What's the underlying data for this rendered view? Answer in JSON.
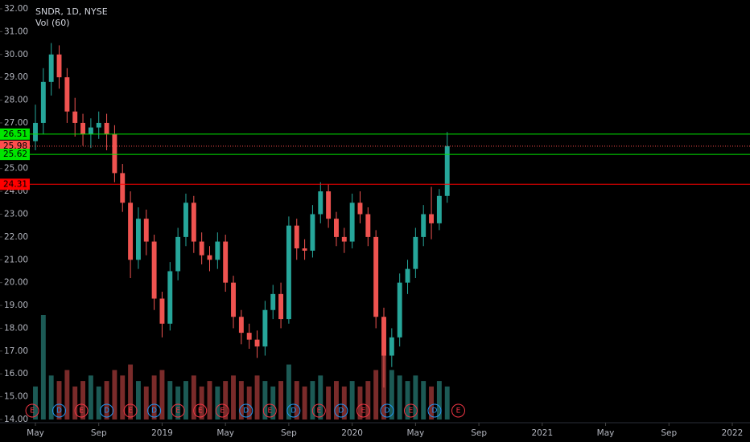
{
  "header": {
    "title": "SNDR, 1D, NYSE",
    "indicator": "Vol (60)"
  },
  "chart_data": {
    "type": "candlestick",
    "x": [
      0,
      0.5,
      1,
      1.5,
      2,
      2.5,
      3,
      3.5,
      4,
      4.5,
      5,
      5.5,
      6,
      6.5,
      7,
      7.5,
      8,
      8.5,
      9,
      9.5,
      10,
      10.5,
      11,
      11.5,
      12,
      12.5,
      13,
      13.5,
      14,
      14.5,
      15,
      15.5,
      16,
      16.5,
      17,
      17.5,
      18,
      18.5,
      19,
      19.5,
      20,
      20.5,
      21,
      21.5,
      22,
      22.5,
      23,
      23.5,
      24,
      24.5,
      25,
      25.5,
      26
    ],
    "open": [
      26.2,
      27.0,
      28.8,
      30.0,
      29.0,
      27.5,
      27.0,
      26.5,
      26.8,
      27.0,
      26.5,
      24.8,
      23.5,
      21.0,
      22.8,
      21.8,
      19.3,
      18.2,
      20.5,
      22.0,
      23.5,
      21.8,
      21.2,
      21.0,
      21.8,
      20.0,
      18.5,
      17.8,
      17.5,
      17.2,
      18.8,
      19.5,
      18.4,
      22.5,
      21.5,
      21.4,
      23.0,
      24.0,
      22.8,
      22.0,
      21.8,
      23.5,
      23.0,
      22.0,
      18.5,
      16.8,
      17.6,
      20.0,
      20.6,
      22.0,
      23.0,
      22.6,
      23.8
    ],
    "high": [
      27.8,
      29.4,
      30.5,
      30.4,
      29.4,
      28.1,
      27.4,
      27.2,
      27.5,
      27.4,
      26.9,
      25.2,
      24.0,
      23.3,
      23.2,
      22.1,
      19.6,
      20.9,
      22.4,
      23.9,
      23.8,
      22.2,
      21.6,
      22.2,
      22.1,
      20.3,
      18.8,
      18.2,
      17.9,
      19.2,
      19.9,
      20.0,
      22.9,
      22.8,
      21.9,
      23.4,
      24.4,
      24.3,
      23.1,
      22.4,
      23.9,
      24.0,
      23.3,
      22.3,
      18.9,
      18.0,
      20.4,
      21.0,
      22.4,
      23.4,
      24.2,
      24.1,
      26.6
    ],
    "low": [
      25.8,
      26.5,
      28.2,
      28.5,
      27.0,
      26.4,
      26.0,
      25.9,
      26.3,
      25.8,
      24.4,
      23.1,
      20.2,
      20.6,
      21.2,
      18.8,
      17.6,
      17.9,
      20.1,
      21.6,
      21.3,
      20.8,
      20.5,
      20.6,
      19.6,
      18.0,
      17.3,
      17.1,
      16.7,
      16.8,
      18.4,
      18.0,
      18.2,
      21.0,
      21.0,
      21.1,
      22.6,
      22.4,
      21.6,
      21.3,
      21.5,
      22.6,
      21.6,
      18.0,
      15.4,
      16.3,
      17.2,
      19.5,
      20.2,
      21.6,
      21.9,
      22.3,
      23.5
    ],
    "close": [
      27.0,
      28.8,
      30.0,
      29.0,
      27.5,
      27.0,
      26.5,
      26.8,
      27.0,
      26.5,
      24.8,
      23.5,
      21.0,
      22.8,
      21.8,
      19.3,
      18.2,
      20.5,
      22.0,
      23.5,
      21.8,
      21.2,
      21.0,
      21.8,
      20.0,
      18.5,
      17.8,
      17.5,
      17.2,
      18.8,
      19.5,
      18.4,
      22.5,
      21.5,
      21.4,
      23.0,
      24.0,
      22.8,
      22.0,
      21.8,
      23.5,
      23.0,
      22.0,
      18.5,
      16.8,
      17.6,
      20.0,
      20.6,
      22.0,
      23.0,
      22.6,
      23.8,
      25.98
    ],
    "volume": [
      0.6,
      1.9,
      0.8,
      0.7,
      0.9,
      0.6,
      0.7,
      0.8,
      0.6,
      0.7,
      0.9,
      0.8,
      1.0,
      0.7,
      0.6,
      0.8,
      0.9,
      0.7,
      0.6,
      0.7,
      0.8,
      0.6,
      0.7,
      0.6,
      0.7,
      0.8,
      0.7,
      0.6,
      0.8,
      0.7,
      0.6,
      0.7,
      1.0,
      0.7,
      0.6,
      0.7,
      0.8,
      0.6,
      0.7,
      0.6,
      0.7,
      0.6,
      0.7,
      0.9,
      1.2,
      0.9,
      0.8,
      0.7,
      0.8,
      0.7,
      0.6,
      0.7,
      0.6
    ],
    "up_color": "#26a69a",
    "down_color": "#ef5350",
    "volume_up_color": "#1c5a55",
    "volume_down_color": "#7a2b2a",
    "ylim": [
      14,
      32
    ],
    "yticks": [
      {
        "value": 14,
        "label": "14.00"
      },
      {
        "value": 15,
        "label": "15.00"
      },
      {
        "value": 16,
        "label": "16.00"
      },
      {
        "value": 17,
        "label": "17.00"
      },
      {
        "value": 18,
        "label": "18.00"
      },
      {
        "value": 19,
        "label": "19.00"
      },
      {
        "value": 20,
        "label": "20.00"
      },
      {
        "value": 21,
        "label": "21.00"
      },
      {
        "value": 22,
        "label": "22.00"
      },
      {
        "value": 23,
        "label": "23.00"
      },
      {
        "value": 24,
        "label": "24.00"
      },
      {
        "value": 25,
        "label": "25.00"
      },
      {
        "value": 26,
        "label": "26.00"
      },
      {
        "value": 27,
        "label": "27.00"
      },
      {
        "value": 28,
        "label": "28.00"
      },
      {
        "value": 29,
        "label": "29.00"
      },
      {
        "value": 30,
        "label": "30.00"
      },
      {
        "value": 31,
        "label": "31.00"
      },
      {
        "value": 32,
        "label": "32.00"
      }
    ],
    "xlim": [
      -0.3,
      44.1
    ],
    "xticks": [
      {
        "value": 0,
        "label": "May"
      },
      {
        "value": 4,
        "label": "Sep"
      },
      {
        "value": 8,
        "label": "2019"
      },
      {
        "value": 12,
        "label": "May"
      },
      {
        "value": 16,
        "label": "Sep"
      },
      {
        "value": 20,
        "label": "2020"
      },
      {
        "value": 24,
        "label": "May"
      },
      {
        "value": 28,
        "label": "Sep"
      },
      {
        "value": 32,
        "label": "2021"
      },
      {
        "value": 36,
        "label": "May"
      },
      {
        "value": 40,
        "label": "Sep"
      },
      {
        "value": 44,
        "label": "2022"
      }
    ],
    "price_lines": [
      {
        "value": 26.51,
        "color": "#00e600",
        "style": "solid"
      },
      {
        "value": 25.98,
        "color": "#ff4d4d",
        "style": "dotted"
      },
      {
        "value": 25.62,
        "color": "#00e600",
        "style": "solid"
      },
      {
        "value": 24.31,
        "color": "#ff0000",
        "style": "solid"
      }
    ],
    "events": [
      {
        "letter": "E",
        "x": -0.2,
        "color": "#f23645"
      },
      {
        "letter": "D",
        "x": 1.5,
        "color": "#2196f3"
      },
      {
        "letter": "E",
        "x": 2.9,
        "color": "#f23645"
      },
      {
        "letter": "D",
        "x": 4.5,
        "color": "#2196f3"
      },
      {
        "letter": "E",
        "x": 6.0,
        "color": "#f23645"
      },
      {
        "letter": "D",
        "x": 7.5,
        "color": "#2196f3"
      },
      {
        "letter": "E",
        "x": 9.0,
        "color": "#f23645"
      },
      {
        "letter": "E",
        "x": 10.4,
        "color": "#f23645"
      },
      {
        "letter": "E",
        "x": 11.8,
        "color": "#f23645"
      },
      {
        "letter": "D",
        "x": 13.3,
        "color": "#2196f3"
      },
      {
        "letter": "E",
        "x": 14.8,
        "color": "#f23645"
      },
      {
        "letter": "D",
        "x": 16.3,
        "color": "#2196f3"
      },
      {
        "letter": "E",
        "x": 17.9,
        "color": "#f23645"
      },
      {
        "letter": "D",
        "x": 19.3,
        "color": "#2196f3"
      },
      {
        "letter": "E",
        "x": 20.7,
        "color": "#f23645"
      },
      {
        "letter": "D",
        "x": 22.2,
        "color": "#2196f3"
      },
      {
        "letter": "E",
        "x": 23.7,
        "color": "#f23645"
      },
      {
        "letter": "D",
        "x": 25.2,
        "color": "#2196f3"
      },
      {
        "letter": "E",
        "x": 26.7,
        "color": "#f23645"
      }
    ]
  }
}
